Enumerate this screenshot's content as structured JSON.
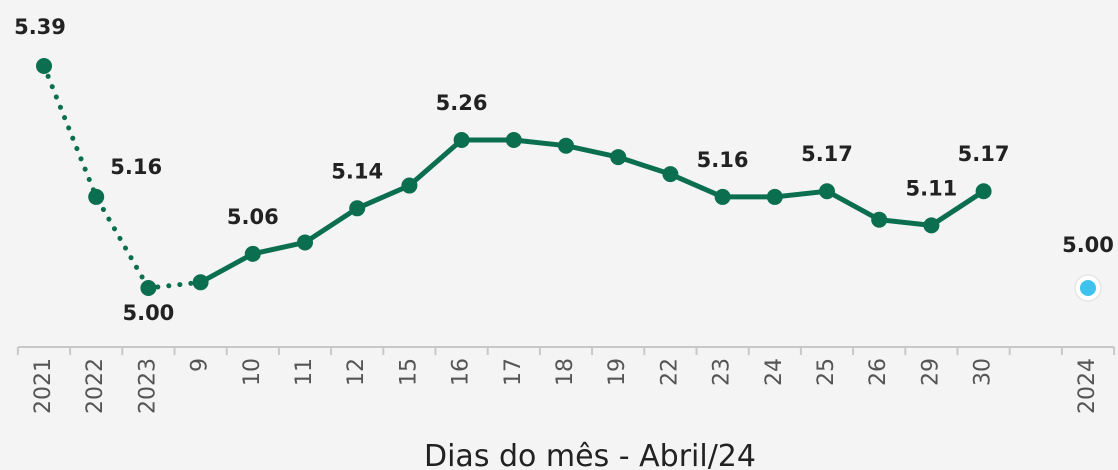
{
  "chart_data": {
    "type": "line",
    "x_label": "Dias do mês - Abril/24",
    "categories": [
      "2021",
      "2022",
      "2023",
      "9",
      "10",
      "11",
      "12",
      "15",
      "16",
      "17",
      "18",
      "19",
      "22",
      "23",
      "24",
      "25",
      "26",
      "29",
      "30",
      null,
      "2024"
    ],
    "values": [
      5.39,
      5.16,
      5.0,
      5.01,
      5.06,
      5.08,
      5.14,
      5.18,
      5.26,
      5.26,
      5.25,
      5.23,
      5.2,
      5.16,
      5.16,
      5.17,
      5.12,
      5.11,
      5.17,
      null,
      5.0
    ],
    "value_labels": [
      "5.39",
      "5.16",
      "5.00",
      null,
      "5.06",
      null,
      "5.14",
      null,
      "5.26",
      null,
      null,
      null,
      null,
      "5.16",
      null,
      "5.17",
      null,
      "5.11",
      "5.17",
      null,
      "5.00"
    ],
    "color": "#0b6e4f",
    "dotted_until": 3,
    "highlight": {
      "index": 20,
      "color": "#3ec3ee"
    }
  }
}
